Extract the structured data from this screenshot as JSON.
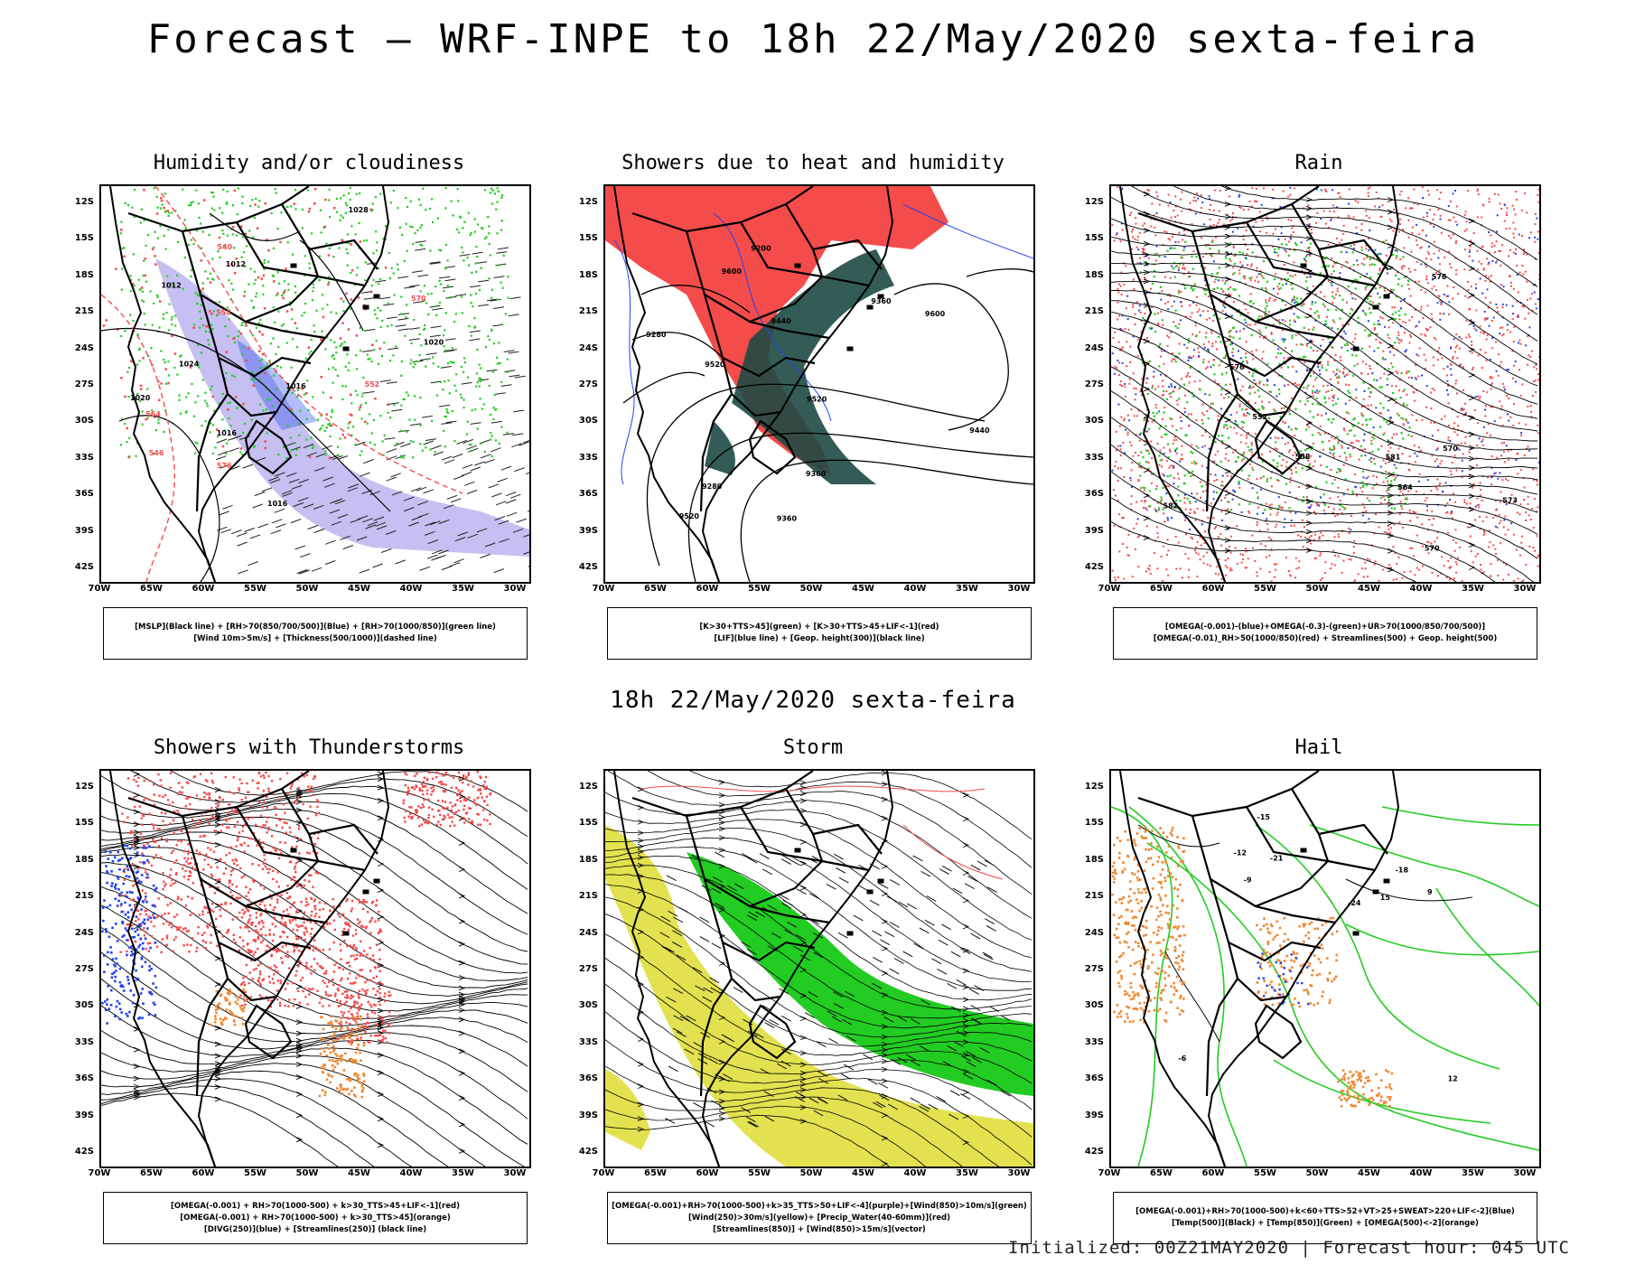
{
  "header": {
    "title": "Forecast – WRF-INPE to 18h 22/May/2020 sexta-feira"
  },
  "subheader": {
    "title": "18h 22/May/2020 sexta-feira"
  },
  "footer": {
    "text": "Initialized: 00Z21MAY2020 | Forecast hour: 045 UTC"
  },
  "axes": {
    "lat_labels": [
      "12S",
      "15S",
      "18S",
      "21S",
      "24S",
      "27S",
      "30S",
      "33S",
      "36S",
      "39S",
      "42S"
    ],
    "lon_labels": [
      "70W",
      "65W",
      "60W",
      "55W",
      "50W",
      "45W",
      "40W",
      "35W",
      "30W"
    ]
  },
  "colors": {
    "red": "#f44b4b",
    "green": "#22cc22",
    "blue": "#2244ee",
    "lavender": "#b6b0ee",
    "darkteal": "#1e4a44",
    "yellow": "#dddd33",
    "orange": "#ee8833"
  },
  "panels": [
    {
      "title": "Humidity and/or cloudiness",
      "legend": [
        "[MSLP](Black line) + [RH>70(850/700/500)](Blue) + [RH>70(1000/850)](green line)",
        "[Wind 10m>5m/s] + [Thickness(500/1000)](dashed line)"
      ],
      "contour_labels": [
        "1016",
        "1012",
        "1016",
        "1020",
        "1024",
        "1028",
        "1012",
        "1016",
        "1020"
      ],
      "thickness_labels": [
        "576",
        "570",
        "564",
        "558",
        "552",
        "546",
        "540"
      ]
    },
    {
      "title": "Showers due to heat and humidity",
      "legend": [
        "[K>30+TTS>45](green) + [K>30+TTS>45+LIF<-1](red)",
        "[LIF](blue line) + [Geop. height(300)](black line)"
      ],
      "contour_labels": [
        "9600",
        "9520",
        "9440",
        "9360",
        "9280",
        "9200",
        "9520",
        "9600",
        "9440",
        "9360",
        "9280",
        "9360",
        "9520"
      ]
    },
    {
      "title": "Rain",
      "legend": [
        "[OMEGA(-0.001)-(blue)+OMEGA(-0.3)-(green)+UR>70(1000/850/700/500)]",
        "[OMEGA(-0.01)_RH>50(1000/850)(red) + Streamlines(500) + Geop. height(500)"
      ],
      "contour_labels": [
        "576",
        "570",
        "564",
        "558",
        "552",
        "581",
        "576",
        "573",
        "582",
        "570"
      ]
    },
    {
      "title": "Showers with Thunderstorms",
      "legend": [
        "[OMEGA(-0.001) + RH>70(1000-500) + k>30_TTS>45+LIF<-1](red)",
        "[OMEGA(-0.001) + RH>70(1000-500) + k>30_TTS>45](orange)",
        "[DIVG(250)](blue) + [Streamlines(250)] (black line)"
      ]
    },
    {
      "title": "Storm",
      "legend": [
        "[OMEGA(-0.001)+RH>70(1000-500)+k>35_TTS>50+LIF<-4](purple)+[Wind(850)>10m/s](green)",
        "[Wind(250)>30m/s](yellow)+ [Precip_Water(40-60mm)](red)",
        "[Streamlines(850)] + [Wind(850)>15m/s](vector)"
      ]
    },
    {
      "title": "Hail",
      "legend": [
        "[OMEGA(-0.001)+RH>70(1000-500)+k<60+TTS>52+VT>25+SWEAT>220+LIF<-2](Blue)",
        "[Temp(500)](Black) + [Temp(850)](Green) + [OMEGA(500)<-2](orange)"
      ],
      "contour_labels": [
        "-12",
        "-15",
        "-18",
        "-21",
        "-24",
        "-9",
        "-6",
        "12",
        "15",
        "9"
      ]
    }
  ]
}
